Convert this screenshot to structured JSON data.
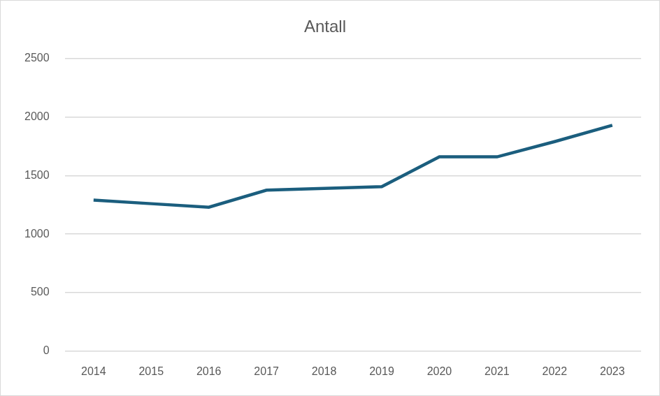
{
  "chart_data": {
    "type": "line",
    "title": "Antall",
    "categories": [
      "2014",
      "2015",
      "2016",
      "2017",
      "2018",
      "2019",
      "2020",
      "2021",
      "2022",
      "2023"
    ],
    "values": [
      1290,
      1260,
      1230,
      1375,
      1390,
      1405,
      1660,
      1660,
      1790,
      1930
    ],
    "color": "#1b5e7e",
    "ylim": [
      0,
      2500
    ],
    "yticks": [
      0,
      500,
      1000,
      1500,
      2000,
      2500
    ],
    "grid": true
  }
}
